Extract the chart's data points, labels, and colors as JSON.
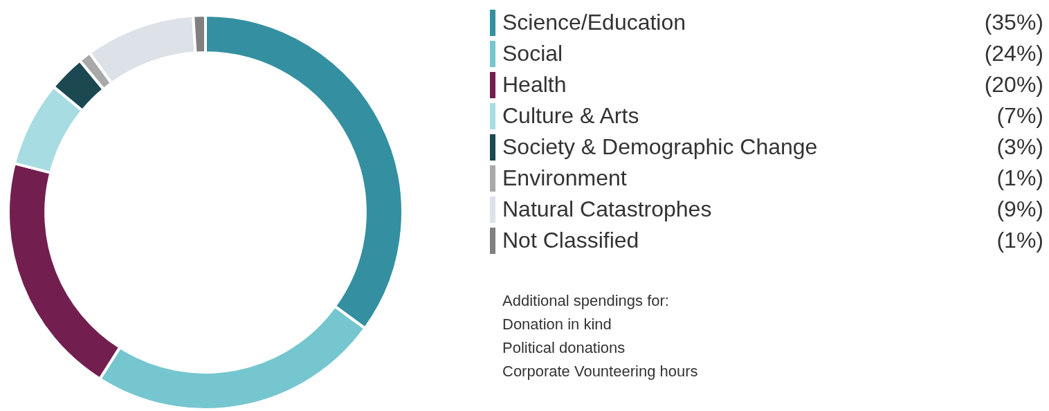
{
  "chart_data": {
    "type": "donut",
    "categories": [
      "Science/Education",
      "Social",
      "Health",
      "Culture & Arts",
      "Society & Demographic Change",
      "Environment",
      "Natural Catastrophes",
      "Not Classified"
    ],
    "values": [
      35,
      24,
      20,
      7,
      3,
      1,
      9,
      1
    ],
    "colors": [
      "#3490a0",
      "#76c6d0",
      "#721f50",
      "#a6dce2",
      "#1c4852",
      "#a9a9a9",
      "#dde1e8",
      "#808080"
    ],
    "value_labels": [
      "(35%)",
      "(24%)",
      "(20%)",
      "(7%)",
      "(3%)",
      "(1%)",
      "(9%)",
      "(1%)"
    ],
    "legend": "right",
    "annotations": [
      "Additional spendings for:",
      "Donation in kind",
      "Political donations",
      "Corporate Vounteering hours"
    ]
  }
}
